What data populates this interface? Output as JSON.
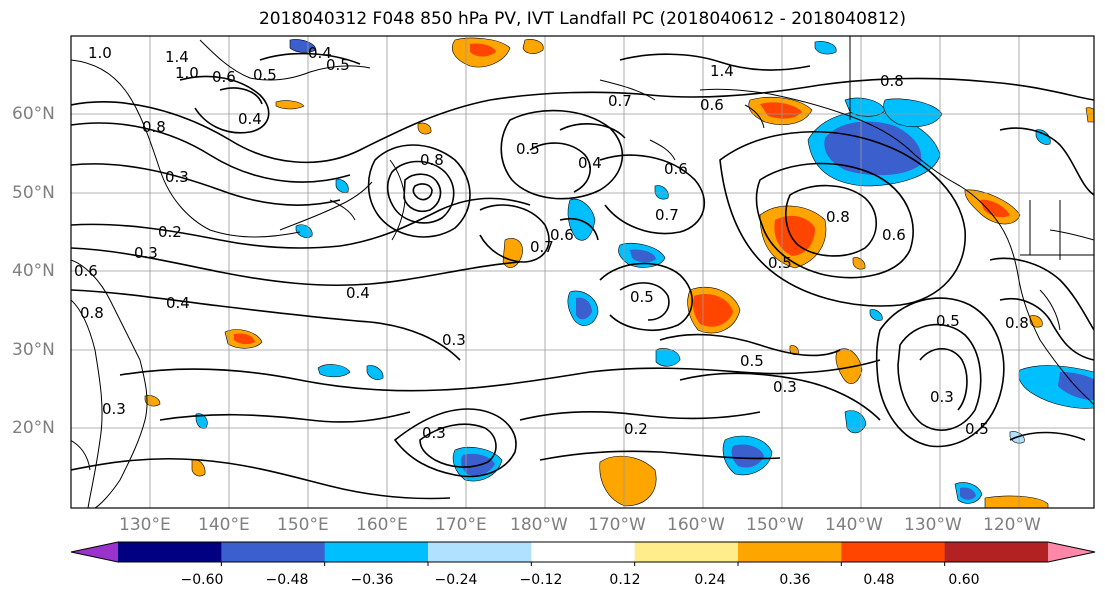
{
  "title": "2018040312 F048 850 hPa PV, IVT Landfall PC (2018040612 - 2018040812)",
  "latitude_labels": [
    "60°N",
    "50°N",
    "40°N",
    "30°N",
    "20°N"
  ],
  "longitude_labels": [
    "130°E",
    "140°E",
    "150°E",
    "160°E",
    "170°E",
    "180°W",
    "170°W",
    "160°W",
    "150°W",
    "140°W",
    "130°W",
    "120°W"
  ],
  "colorbar": {
    "tick_labels": [
      "−0.60",
      "−0.48",
      "−0.36",
      "−0.24",
      "−0.12",
      "0.12",
      "0.24",
      "0.36",
      "0.48",
      "0.60"
    ],
    "bin_colors": [
      "#9933cc",
      "#000080",
      "#3b5fcd",
      "#00bfff",
      "#b0e2ff",
      "#ffffff",
      "#ffec8b",
      "#ffa500",
      "#ff4500",
      "#b22222",
      "#ff88aa"
    ]
  },
  "contour_labels": [
    "1.0",
    "1.4",
    "1.0",
    "0.6",
    "0.5",
    "0.4",
    "0.5",
    "0.8",
    "0.3",
    "0.2",
    "0.6",
    "0.8",
    "0.4",
    "0.3",
    "0.4",
    "0.8",
    "0.5",
    "0.4",
    "0.7",
    "0.6",
    "0.7",
    "0.6",
    "0.5",
    "0.3",
    "0.4",
    "0.5",
    "0.3",
    "0.2",
    "0.3",
    "0.8",
    "0.6",
    "0.8",
    "0.5",
    "0.3",
    "0.5",
    "0.3",
    "1.4",
    "0.8",
    "0.7",
    "0.6",
    "0.5"
  ]
}
